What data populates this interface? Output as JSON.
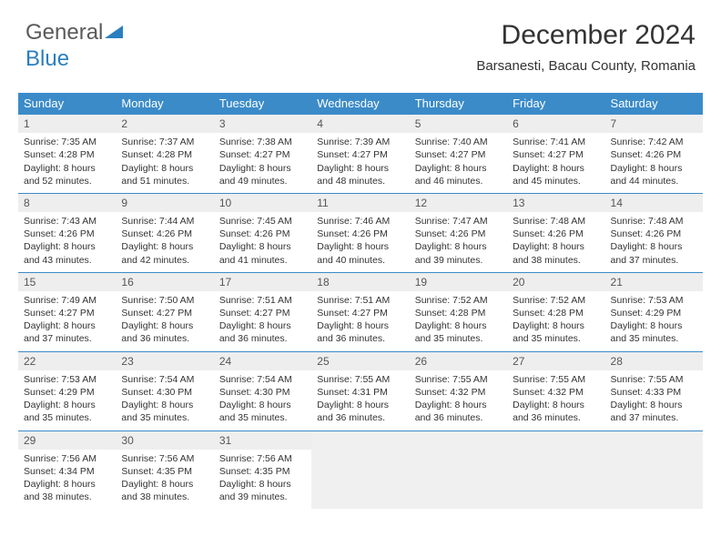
{
  "logo": {
    "text1": "General",
    "text2": "Blue"
  },
  "header": {
    "month_title": "December 2024",
    "location": "Barsanesti, Bacau County, Romania"
  },
  "style": {
    "header_bg": "#3b8bc9",
    "header_text": "#ffffff",
    "daynum_bg": "#eeeeee",
    "border_color": "#3b8bc9",
    "body_fontsize": 10.5,
    "title_fontsize": 30
  },
  "weekdays": [
    "Sunday",
    "Monday",
    "Tuesday",
    "Wednesday",
    "Thursday",
    "Friday",
    "Saturday"
  ],
  "weeks": [
    [
      {
        "n": "1",
        "sr": "7:35 AM",
        "ss": "4:28 PM",
        "dl": "8 hours and 52 minutes."
      },
      {
        "n": "2",
        "sr": "7:37 AM",
        "ss": "4:28 PM",
        "dl": "8 hours and 51 minutes."
      },
      {
        "n": "3",
        "sr": "7:38 AM",
        "ss": "4:27 PM",
        "dl": "8 hours and 49 minutes."
      },
      {
        "n": "4",
        "sr": "7:39 AM",
        "ss": "4:27 PM",
        "dl": "8 hours and 48 minutes."
      },
      {
        "n": "5",
        "sr": "7:40 AM",
        "ss": "4:27 PM",
        "dl": "8 hours and 46 minutes."
      },
      {
        "n": "6",
        "sr": "7:41 AM",
        "ss": "4:27 PM",
        "dl": "8 hours and 45 minutes."
      },
      {
        "n": "7",
        "sr": "7:42 AM",
        "ss": "4:26 PM",
        "dl": "8 hours and 44 minutes."
      }
    ],
    [
      {
        "n": "8",
        "sr": "7:43 AM",
        "ss": "4:26 PM",
        "dl": "8 hours and 43 minutes."
      },
      {
        "n": "9",
        "sr": "7:44 AM",
        "ss": "4:26 PM",
        "dl": "8 hours and 42 minutes."
      },
      {
        "n": "10",
        "sr": "7:45 AM",
        "ss": "4:26 PM",
        "dl": "8 hours and 41 minutes."
      },
      {
        "n": "11",
        "sr": "7:46 AM",
        "ss": "4:26 PM",
        "dl": "8 hours and 40 minutes."
      },
      {
        "n": "12",
        "sr": "7:47 AM",
        "ss": "4:26 PM",
        "dl": "8 hours and 39 minutes."
      },
      {
        "n": "13",
        "sr": "7:48 AM",
        "ss": "4:26 PM",
        "dl": "8 hours and 38 minutes."
      },
      {
        "n": "14",
        "sr": "7:48 AM",
        "ss": "4:26 PM",
        "dl": "8 hours and 37 minutes."
      }
    ],
    [
      {
        "n": "15",
        "sr": "7:49 AM",
        "ss": "4:27 PM",
        "dl": "8 hours and 37 minutes."
      },
      {
        "n": "16",
        "sr": "7:50 AM",
        "ss": "4:27 PM",
        "dl": "8 hours and 36 minutes."
      },
      {
        "n": "17",
        "sr": "7:51 AM",
        "ss": "4:27 PM",
        "dl": "8 hours and 36 minutes."
      },
      {
        "n": "18",
        "sr": "7:51 AM",
        "ss": "4:27 PM",
        "dl": "8 hours and 36 minutes."
      },
      {
        "n": "19",
        "sr": "7:52 AM",
        "ss": "4:28 PM",
        "dl": "8 hours and 35 minutes."
      },
      {
        "n": "20",
        "sr": "7:52 AM",
        "ss": "4:28 PM",
        "dl": "8 hours and 35 minutes."
      },
      {
        "n": "21",
        "sr": "7:53 AM",
        "ss": "4:29 PM",
        "dl": "8 hours and 35 minutes."
      }
    ],
    [
      {
        "n": "22",
        "sr": "7:53 AM",
        "ss": "4:29 PM",
        "dl": "8 hours and 35 minutes."
      },
      {
        "n": "23",
        "sr": "7:54 AM",
        "ss": "4:30 PM",
        "dl": "8 hours and 35 minutes."
      },
      {
        "n": "24",
        "sr": "7:54 AM",
        "ss": "4:30 PM",
        "dl": "8 hours and 35 minutes."
      },
      {
        "n": "25",
        "sr": "7:55 AM",
        "ss": "4:31 PM",
        "dl": "8 hours and 36 minutes."
      },
      {
        "n": "26",
        "sr": "7:55 AM",
        "ss": "4:32 PM",
        "dl": "8 hours and 36 minutes."
      },
      {
        "n": "27",
        "sr": "7:55 AM",
        "ss": "4:32 PM",
        "dl": "8 hours and 36 minutes."
      },
      {
        "n": "28",
        "sr": "7:55 AM",
        "ss": "4:33 PM",
        "dl": "8 hours and 37 minutes."
      }
    ],
    [
      {
        "n": "29",
        "sr": "7:56 AM",
        "ss": "4:34 PM",
        "dl": "8 hours and 38 minutes."
      },
      {
        "n": "30",
        "sr": "7:56 AM",
        "ss": "4:35 PM",
        "dl": "8 hours and 38 minutes."
      },
      {
        "n": "31",
        "sr": "7:56 AM",
        "ss": "4:35 PM",
        "dl": "8 hours and 39 minutes."
      },
      null,
      null,
      null,
      null
    ]
  ],
  "labels": {
    "sunrise": "Sunrise: ",
    "sunset": "Sunset: ",
    "daylight": "Daylight: "
  }
}
